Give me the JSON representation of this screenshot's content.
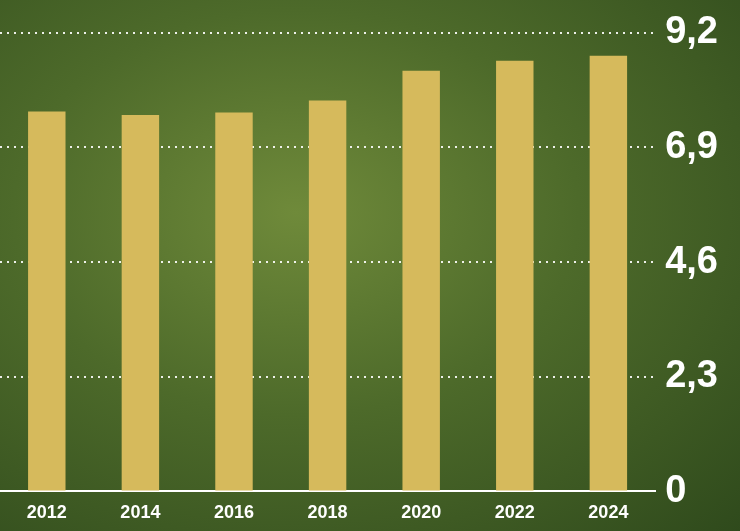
{
  "chart_data": {
    "type": "bar",
    "categories": [
      "2012",
      "2014",
      "2016",
      "2018",
      "2020",
      "2022",
      "2024"
    ],
    "values": [
      7.62,
      7.55,
      7.6,
      7.84,
      8.44,
      8.64,
      8.74
    ],
    "color": "#d6ba5c",
    "ylim": [
      0,
      9.2
    ],
    "yticks": [
      0,
      {
        "value": 2.3,
        "label": "2,3"
      },
      {
        "value": 4.6,
        "label": "4,6"
      },
      {
        "value": 6.9,
        "label": "6,9"
      },
      {
        "value": 9.2,
        "label": "9,2"
      }
    ],
    "grid": true
  }
}
